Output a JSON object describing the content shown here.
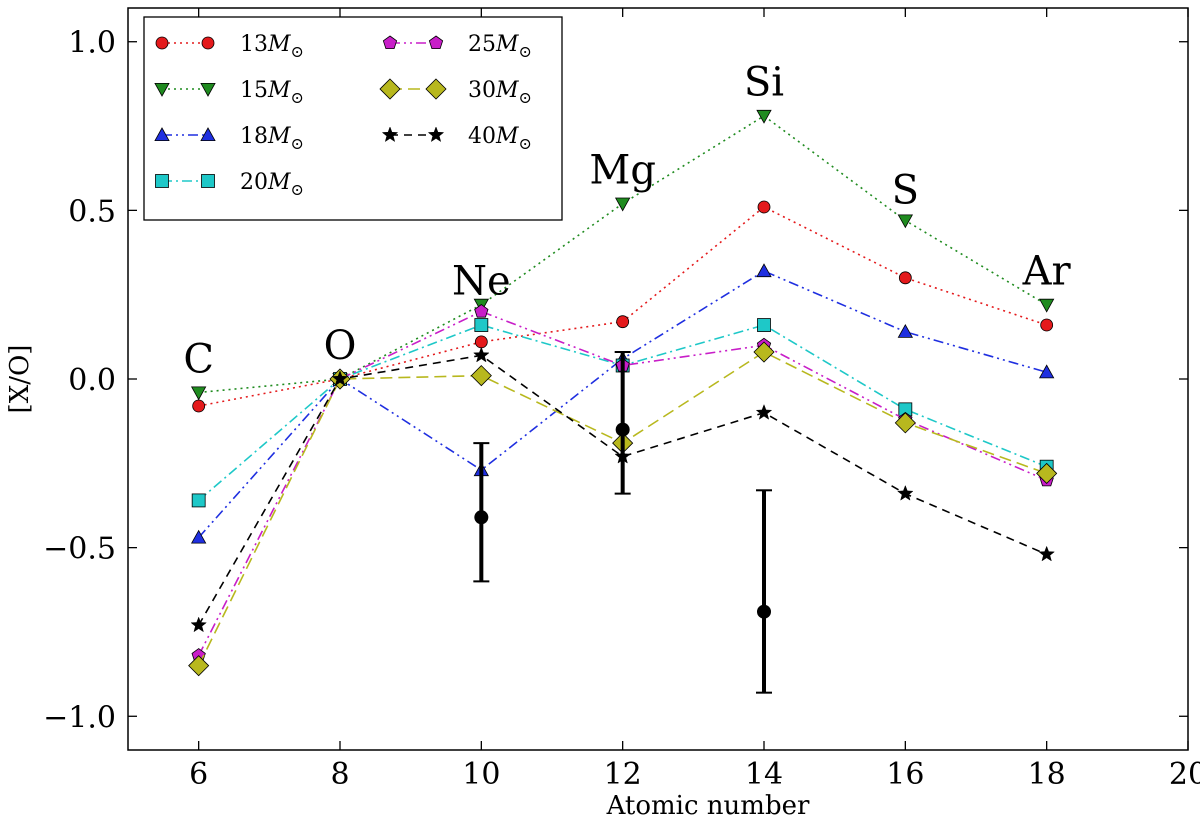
{
  "chart_data": {
    "type": "line",
    "title": "",
    "xlabel": "Atomic number",
    "ylabel": "[X/O]",
    "xlim": [
      5,
      20
    ],
    "ylim": [
      -1.1,
      1.1
    ],
    "xticks": [
      6,
      8,
      10,
      12,
      14,
      16,
      18,
      20
    ],
    "yticks": [
      1.0,
      0.5,
      0.0,
      -0.5,
      -1.0
    ],
    "ytick_labels": [
      "1.0",
      "0.5",
      "0.0",
      "−0.5",
      "−1.0"
    ],
    "x": [
      6,
      8,
      10,
      12,
      14,
      16,
      18
    ],
    "legend_position": "top-left",
    "element_labels": [
      {
        "text": "C",
        "x": 6,
        "y": 0.02
      },
      {
        "text": "O",
        "x": 8,
        "y": 0.06
      },
      {
        "text": "Ne",
        "x": 10,
        "y": 0.25
      },
      {
        "text": "Mg",
        "x": 12,
        "y": 0.58
      },
      {
        "text": "Si",
        "x": 14,
        "y": 0.84
      },
      {
        "text": "S",
        "x": 16,
        "y": 0.52
      },
      {
        "text": "Ar",
        "x": 18,
        "y": 0.28
      }
    ],
    "series": [
      {
        "name": "13",
        "unit": "M⊙",
        "marker": "circle",
        "color": "#e41a1c",
        "dash": "2,4",
        "values": [
          -0.08,
          0.0,
          0.11,
          0.17,
          0.51,
          0.3,
          0.16
        ]
      },
      {
        "name": "15",
        "unit": "M⊙",
        "marker": "triangle-down",
        "color": "#1f8b1f",
        "dash": "2,4",
        "values": [
          -0.04,
          0.0,
          0.22,
          0.52,
          0.78,
          0.47,
          0.22
        ]
      },
      {
        "name": "18",
        "unit": "M⊙",
        "marker": "triangle-up",
        "color": "#1f2fe0",
        "dash": "10,4,2,4,2,4",
        "values": [
          -0.47,
          0.0,
          -0.27,
          0.06,
          0.32,
          0.14,
          0.02
        ]
      },
      {
        "name": "20",
        "unit": "M⊙",
        "marker": "square",
        "color": "#1ec8c8",
        "dash": "10,4,2,4",
        "values": [
          -0.36,
          0.0,
          0.16,
          0.04,
          0.16,
          -0.09,
          -0.26
        ]
      },
      {
        "name": "25",
        "unit": "M⊙",
        "marker": "pentagon",
        "color": "#c81ec8",
        "dash": "10,4,2,4,2,4",
        "values": [
          -0.82,
          0.0,
          0.2,
          0.04,
          0.1,
          -0.12,
          -0.3
        ]
      },
      {
        "name": "30",
        "unit": "M⊙",
        "marker": "diamond",
        "color": "#b8b81e",
        "dash": "12,6",
        "values": [
          -0.85,
          0.0,
          0.01,
          -0.19,
          0.08,
          -0.13,
          -0.28
        ]
      },
      {
        "name": "40",
        "unit": "M⊙",
        "marker": "star",
        "color": "#000000",
        "dash": "8,6",
        "values": [
          -0.73,
          0.0,
          0.07,
          -0.23,
          -0.1,
          -0.34,
          -0.52
        ]
      }
    ],
    "observations": [
      {
        "x": 10,
        "y": -0.41,
        "err_low": -0.6,
        "err_high": -0.19
      },
      {
        "x": 12,
        "y": -0.15,
        "err_low": -0.34,
        "err_high": 0.08
      },
      {
        "x": 14,
        "y": -0.69,
        "err_low": -0.93,
        "err_high": -0.33
      }
    ]
  }
}
